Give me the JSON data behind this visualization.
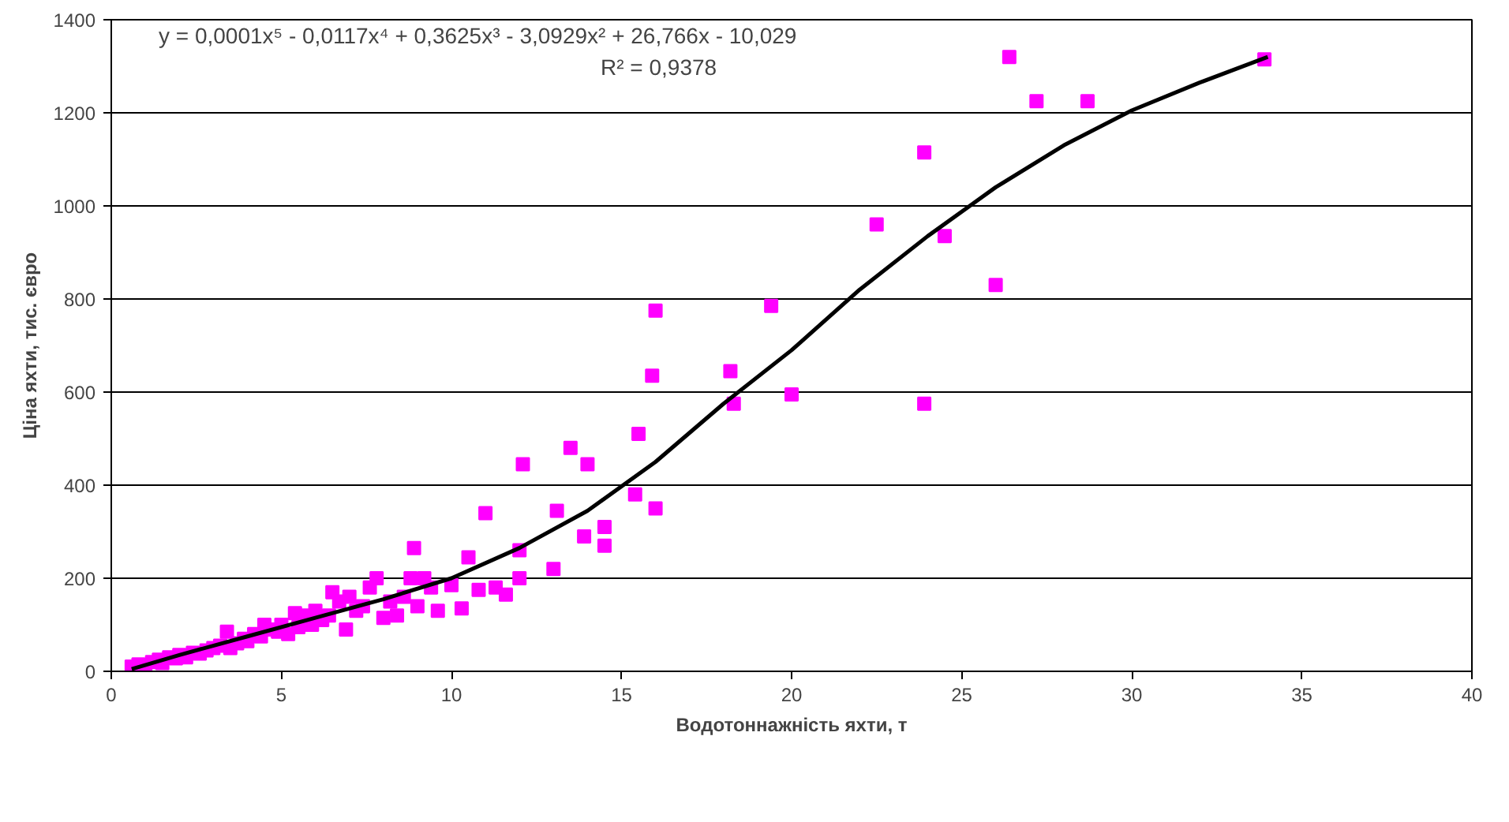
{
  "chart_data": {
    "type": "scatter",
    "xlabel": "Водотоннажність яхти, т",
    "ylabel": "Ціна яхти, тис. євро",
    "annotations": [
      "y = 0,0001x⁵ - 0,0117x⁴ + 0,3625x³ - 3,0929x² + 26,766x - 10,029",
      "R² = 0,9378"
    ],
    "xlim": [
      0,
      40
    ],
    "xticks": [
      0,
      5,
      10,
      15,
      20,
      25,
      30,
      35,
      40
    ],
    "ylim": [
      0,
      1400
    ],
    "yticks": [
      0,
      200,
      400,
      600,
      800,
      1000,
      1200,
      1400
    ],
    "grid": "y",
    "series": [
      {
        "marker": "square",
        "color": "#ff00ff",
        "x": [
          0.6,
          0.8,
          1.0,
          1.2,
          1.4,
          1.5,
          1.7,
          1.9,
          2.0,
          2.2,
          2.4,
          2.6,
          2.8,
          3.0,
          3.2,
          3.4,
          3.5,
          3.7,
          3.9,
          4.0,
          4.2,
          4.4,
          4.5,
          4.7,
          4.9,
          5.0,
          5.2,
          5.4,
          5.5,
          5.7,
          5.9,
          6.0,
          6.2,
          6.4,
          6.5,
          6.7,
          6.9,
          7.0,
          7.2,
          7.4,
          7.6,
          7.8,
          8.0,
          8.2,
          8.4,
          8.6,
          8.8,
          8.9,
          9.0,
          9.2,
          9.4,
          9.6,
          10.0,
          10.3,
          10.5,
          10.8,
          11.0,
          11.3,
          11.6,
          12.0,
          12.0,
          12.1,
          13.0,
          13.1,
          13.5,
          13.9,
          14.0,
          14.5,
          14.5,
          15.4,
          15.5,
          15.9,
          16.0,
          16.0,
          18.2,
          18.3,
          19.4,
          20.0,
          22.5,
          23.9,
          23.9,
          24.5,
          26.0,
          26.4,
          27.2,
          28.7,
          33.9
        ],
        "values": [
          10,
          15,
          12,
          20,
          25,
          18,
          30,
          28,
          35,
          30,
          40,
          38,
          45,
          50,
          55,
          85,
          50,
          60,
          70,
          65,
          80,
          75,
          100,
          90,
          85,
          100,
          80,
          125,
          95,
          120,
          100,
          130,
          110,
          120,
          170,
          150,
          90,
          160,
          130,
          140,
          180,
          200,
          115,
          150,
          120,
          160,
          200,
          265,
          140,
          200,
          180,
          130,
          185,
          135,
          245,
          175,
          340,
          180,
          165,
          200,
          260,
          445,
          220,
          345,
          480,
          290,
          445,
          310,
          270,
          380,
          510,
          635,
          775,
          350,
          645,
          575,
          785,
          595,
          960,
          575,
          1115,
          935,
          830,
          1320,
          1225,
          1225,
          1315
        ]
      },
      {
        "type": "line",
        "color": "#000000",
        "x": [
          0.6,
          2,
          4,
          6,
          8,
          10,
          12,
          14,
          16,
          18,
          20,
          22,
          24,
          26,
          28,
          30,
          32,
          34
        ],
        "values": [
          5,
          35,
          75,
          115,
          155,
          200,
          265,
          345,
          450,
          575,
          690,
          820,
          935,
          1040,
          1130,
          1205,
          1265,
          1320
        ]
      }
    ]
  }
}
